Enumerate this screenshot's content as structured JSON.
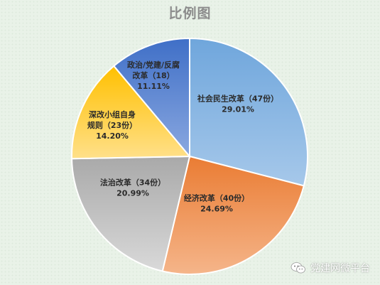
{
  "chart_data": {
    "type": "pie",
    "title": "比例图",
    "slices": [
      {
        "label": "社会民生改革（47份）",
        "lines": [
          "社会民生改革（47份）"
        ],
        "count": 47,
        "percent_label": "29.01%",
        "value": 29.01,
        "color_top": "#6fa6dc",
        "color_bottom": "#a6c8ea"
      },
      {
        "label": "经济改革（40份）",
        "lines": [
          "经济改革（40份）"
        ],
        "count": 40,
        "percent_label": "24.69%",
        "value": 24.69,
        "color_top": "#ea7c33",
        "color_bottom": "#f5b58a"
      },
      {
        "label": "法治改革（34份）",
        "lines": [
          "法治改革（34份）"
        ],
        "count": 34,
        "percent_label": "20.99%",
        "value": 20.99,
        "color_top": "#a9a9a9",
        "color_bottom": "#d9d9d9"
      },
      {
        "label": "深改小组自身规则（23份）",
        "lines": [
          "深改小组自身",
          "规则（23份）"
        ],
        "count": 23,
        "percent_label": "14.20%",
        "value": 14.2,
        "color_top": "#ffc000",
        "color_bottom": "#ffe08a"
      },
      {
        "label": "政治/党建/反腐改革（18）",
        "lines": [
          "政治/党建/反腐",
          "改革（18）"
        ],
        "count": 18,
        "percent_label": "11.11%",
        "value": 11.11,
        "color_top": "#3f6fc7",
        "color_bottom": "#8aa8e0"
      }
    ]
  },
  "watermark": {
    "text": "党建网微平台",
    "icon": "wechat-icon"
  }
}
